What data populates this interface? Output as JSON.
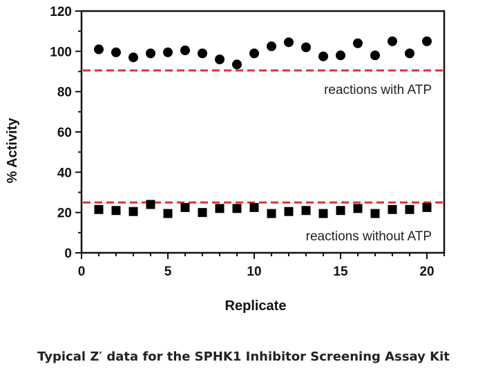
{
  "caption": "Typical Z′ data for the SPHK1 Inhibitor Screening Assay Kit",
  "chart_data": {
    "type": "scatter",
    "xlabel": "Replicate",
    "ylabel": "% Activity",
    "xlim": [
      0,
      21
    ],
    "ylim": [
      0,
      120
    ],
    "xticks": [
      0,
      5,
      10,
      15,
      20
    ],
    "yticks": [
      0,
      20,
      40,
      60,
      80,
      100,
      120
    ],
    "grid": false,
    "series": [
      {
        "marker": "circle",
        "color": "#000000",
        "x": [
          1,
          2,
          3,
          4,
          5,
          6,
          7,
          8,
          9,
          10,
          11,
          12,
          13,
          14,
          15,
          16,
          17,
          18,
          19,
          20
        ],
        "y": [
          101,
          99.5,
          97,
          99,
          99.5,
          100.5,
          99,
          96,
          93.5,
          99,
          102.5,
          104.5,
          102,
          97.5,
          98,
          104,
          98,
          105,
          99,
          105
        ]
      },
      {
        "marker": "square",
        "color": "#000000",
        "x": [
          1,
          2,
          3,
          4,
          5,
          6,
          7,
          8,
          9,
          10,
          11,
          12,
          13,
          14,
          15,
          16,
          17,
          18,
          19,
          20
        ],
        "y": [
          21.5,
          21,
          20.5,
          24,
          19.5,
          22.5,
          20,
          22,
          22,
          22.5,
          19.5,
          20.5,
          21,
          19.5,
          21,
          22,
          19.5,
          21.5,
          21.5,
          22.5
        ]
      }
    ],
    "reference_lines": [
      {
        "y": 90.5,
        "color": "#e03030",
        "style": "dashed"
      },
      {
        "y": 25,
        "color": "#e03030",
        "style": "dashed"
      }
    ],
    "annotations": [
      "reactions with ATP",
      "reactions without ATP"
    ]
  }
}
